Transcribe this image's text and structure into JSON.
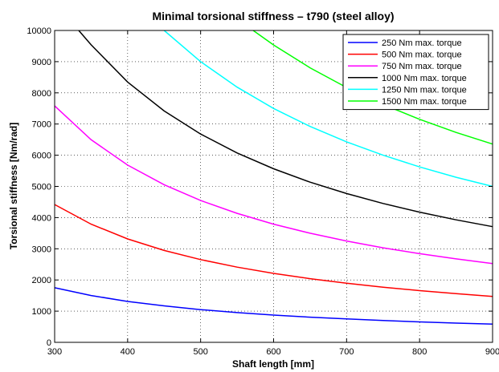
{
  "chart_data": {
    "type": "line",
    "title": "Minimal torsional stiffness – t790 (steel alloy)",
    "xlabel": "Shaft length [mm]",
    "ylabel": "Torsional stiffness [Nm/rad]",
    "xlim": [
      300,
      900
    ],
    "ylim": [
      0,
      10000
    ],
    "xticks": [
      "300",
      "400",
      "500",
      "600",
      "700",
      "800",
      "900"
    ],
    "yticks": [
      "0",
      "1000",
      "2000",
      "3000",
      "4000",
      "5000",
      "6000",
      "7000",
      "8000",
      "9000",
      "10000"
    ],
    "grid": true,
    "legend_position": "top-right",
    "x": [
      300,
      350,
      400,
      450,
      500,
      550,
      600,
      650,
      700,
      750,
      800,
      850,
      900
    ],
    "series": [
      {
        "name": "250 Nm max. torque",
        "color": "#0000ff",
        "values": [
          1750,
          1500,
          1310,
          1170,
          1050,
          955,
          875,
          808,
          750,
          700,
          656,
          618,
          583
        ]
      },
      {
        "name": "500 Nm max. torque",
        "color": "#ff0000",
        "values": [
          4420,
          3790,
          3315,
          2947,
          2652,
          2411,
          2210,
          2040,
          1894,
          1768,
          1658,
          1560,
          1473
        ]
      },
      {
        "name": "750 Nm max. torque",
        "color": "#ff00ff",
        "values": [
          7580,
          6497,
          5685,
          5053,
          4548,
          4135,
          3790,
          3498,
          3249,
          3032,
          2843,
          2675,
          2527
        ]
      },
      {
        "name": "1000 Nm max. torque",
        "color": "#000000",
        "values": [
          null,
          9540,
          8348,
          7420,
          6678,
          6071,
          5565,
          5137,
          4770,
          4452,
          4174,
          3928,
          3710
        ]
      },
      {
        "name": "1250 Nm max. torque",
        "color": "#00ffff",
        "values": [
          null,
          null,
          null,
          null,
          9000,
          8182,
          7500,
          6923,
          6429,
          6000,
          5625,
          5294,
          5000
        ]
      },
      {
        "name": "1500 Nm max. torque",
        "color": "#00ff00",
        "values": [
          null,
          null,
          null,
          null,
          null,
          null,
          9535,
          8802,
          8173,
          7628,
          7151,
          6731,
          6357
        ]
      }
    ],
    "line_starts": [
      {
        "series": 3,
        "x": 333,
        "y": 10000
      },
      {
        "series": 4,
        "x": 450,
        "y": 10000
      },
      {
        "series": 5,
        "x": 572,
        "y": 10000
      }
    ]
  }
}
